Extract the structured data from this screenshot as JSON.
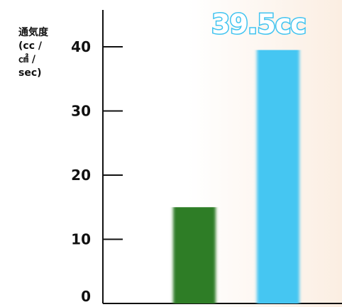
{
  "chart_data": {
    "type": "bar",
    "categories": [
      "",
      ""
    ],
    "series": [
      {
        "values": [
          15,
          39.5
        ]
      }
    ],
    "colors": [
      "#2e7d26",
      "#45c6f2"
    ],
    "ylabel": "通気度\n(cc /\n㎠ /\nsec)",
    "yticks": [
      0,
      10,
      20,
      30,
      40
    ],
    "ylim": [
      0,
      45
    ],
    "annotation": "39.5cc",
    "grid": false
  }
}
